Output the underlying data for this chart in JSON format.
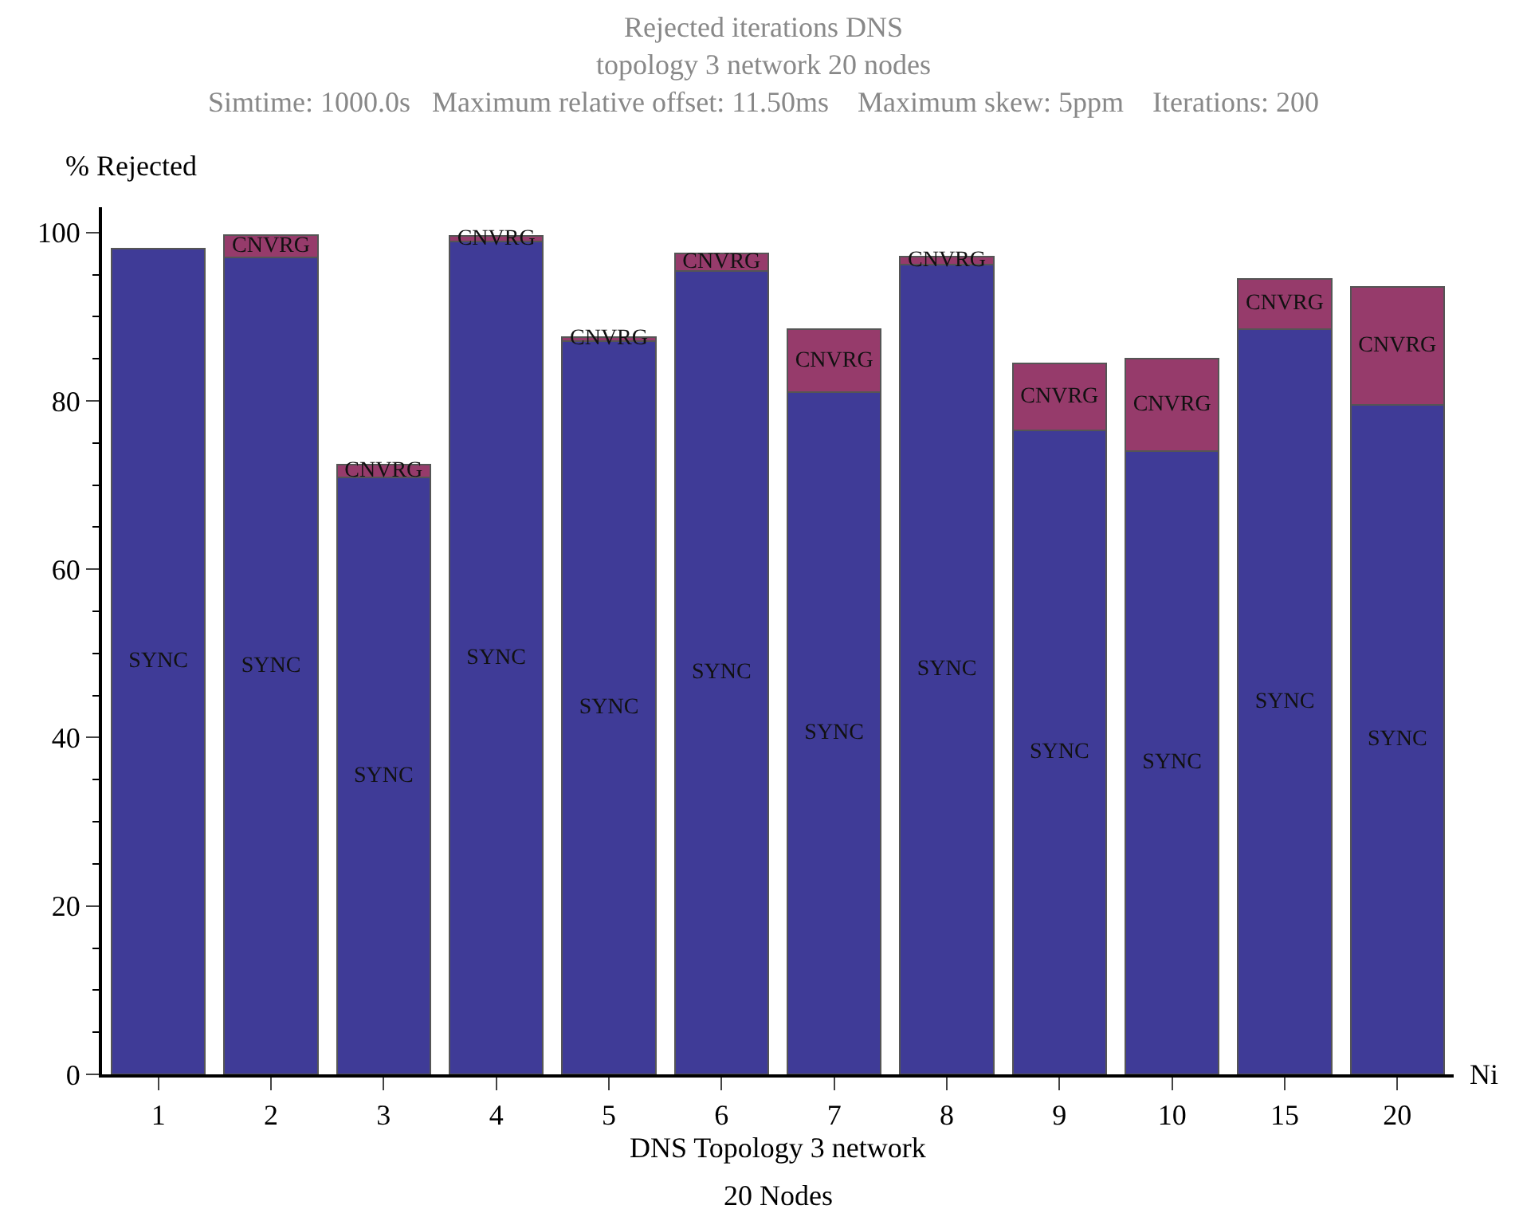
{
  "chart_data": {
    "type": "bar",
    "stacked": true,
    "title": "Rejected iterations DNS",
    "subtitle": "topology 3 network 20 nodes\nSimtime: 1000.0s   Maximum relative offset: 11.50ms    Maximum skew: 5ppm    Iterations: 200",
    "ylabel": "% Rejected",
    "xlabel": "Ni",
    "annotations": [
      "DNS Topology 3 network",
      "20 Nodes"
    ],
    "categories": [
      "1",
      "2",
      "3",
      "4",
      "5",
      "6",
      "7",
      "8",
      "9",
      "10",
      "15",
      "20"
    ],
    "series": [
      {
        "name": "SYNC",
        "color": "#3f3b97",
        "values": [
          98.1,
          97.0,
          70.9,
          98.9,
          87.1,
          95.4,
          81.0,
          96.2,
          76.5,
          74.0,
          88.5,
          79.5
        ]
      },
      {
        "name": "CNVRG",
        "color": "#963b6b",
        "values": [
          null,
          2.7,
          1.5,
          0.7,
          0.5,
          2.1,
          7.5,
          0.9,
          7.9,
          11.0,
          6.0,
          14.0
        ]
      }
    ],
    "ylim": [
      0,
      103
    ],
    "yticks": [
      0,
      20,
      40,
      60,
      80,
      100
    ],
    "legend": false
  }
}
